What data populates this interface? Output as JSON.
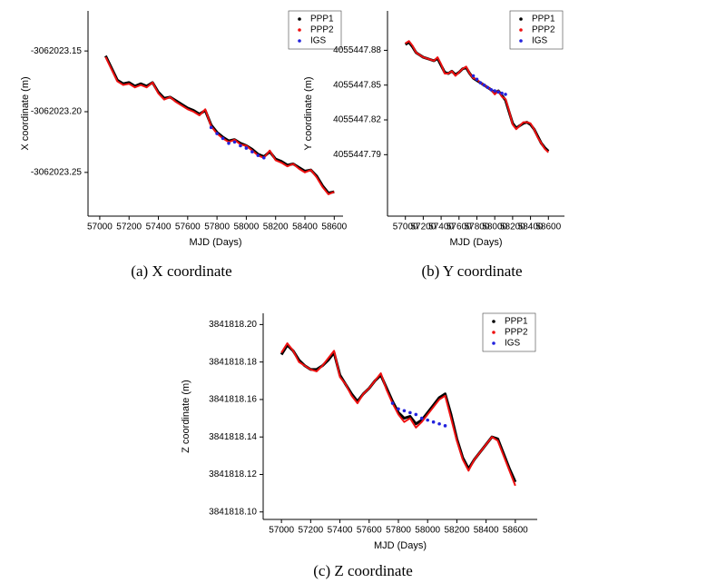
{
  "chart_data": [
    {
      "type": "line",
      "caption": "(a) X coordinate",
      "xlabel": "MJD (Days)",
      "ylabel": "X coordinate (m)",
      "legend": "upper right",
      "xlim": [
        56920,
        58660
      ],
      "ylim": [
        -3062023.286,
        -3062023.117
      ],
      "xticks": [
        57000,
        57200,
        57400,
        57600,
        57800,
        58000,
        58200,
        58400,
        58600
      ],
      "yticks": [
        -3062023.15,
        {
          "value": -3062023.2,
          "label": "-3062023.20"
        },
        -3062023.25
      ],
      "x": [
        57040,
        57080,
        57120,
        57160,
        57200,
        57240,
        57280,
        57320,
        57360,
        57400,
        57440,
        57480,
        57520,
        57560,
        57600,
        57640,
        57680,
        57720,
        57760,
        57800,
        57840,
        57880,
        57920,
        57960,
        58000,
        58040,
        58080,
        58120,
        58160,
        58200,
        58240,
        58280,
        58320,
        58360,
        58400,
        58440,
        58480,
        58520,
        58560,
        58600
      ],
      "series": [
        {
          "name": "PPP1",
          "color": "#000000",
          "style": "line",
          "values": [
            -3062023.154,
            -3062023.164,
            -3062023.174,
            -3062023.177,
            -3062023.176,
            -3062023.179,
            -3062023.177,
            -3062023.179,
            -3062023.176,
            -3062023.184,
            -3062023.189,
            -3062023.188,
            -3062023.191,
            -3062023.194,
            -3062023.197,
            -3062023.199,
            -3062023.202,
            -3062023.199,
            -3062023.211,
            -3062023.217,
            -3062023.221,
            -3062023.224,
            -3062023.223,
            -3062023.226,
            -3062023.228,
            -3062023.231,
            -3062023.235,
            -3062023.237,
            -3062023.233,
            -3062023.239,
            -3062023.241,
            -3062023.244,
            -3062023.243,
            -3062023.246,
            -3062023.249,
            -3062023.248,
            -3062023.253,
            -3062023.261,
            -3062023.267,
            -3062023.266
          ]
        },
        {
          "name": "PPP2",
          "color": "#ee1111",
          "style": "line",
          "values": [
            -3062023.155,
            -3062023.165,
            -3062023.175,
            -3062023.178,
            -3062023.177,
            -3062023.18,
            -3062023.178,
            -3062023.18,
            -3062023.176,
            -3062023.185,
            -3062023.19,
            -3062023.188,
            -3062023.192,
            -3062023.195,
            -3062023.198,
            -3062023.2,
            -3062023.203,
            -3062023.198,
            -3062023.212,
            -3062023.218,
            -3062023.222,
            -3062023.225,
            -3062023.223,
            -3062023.227,
            -3062023.228,
            -3062023.232,
            -3062023.236,
            -3062023.238,
            -3062023.232,
            -3062023.24,
            -3062023.242,
            -3062023.245,
            -3062023.243,
            -3062023.247,
            -3062023.25,
            -3062023.248,
            -3062023.254,
            -3062023.262,
            -3062023.268,
            -3062023.266
          ]
        },
        {
          "name": "IGS",
          "color": "#2222dd",
          "style": "dots",
          "x": [
            57760,
            57800,
            57840,
            57880,
            57920,
            57960,
            58000,
            58040,
            58080,
            58120
          ],
          "values": [
            -3062023.213,
            -3062023.218,
            -3062023.222,
            -3062023.226,
            -3062023.225,
            -3062023.228,
            -3062023.23,
            -3062023.233,
            -3062023.236,
            -3062023.238
          ]
        }
      ]
    },
    {
      "type": "line",
      "caption": "(b) Y coordinate",
      "xlabel": "MJD (Days)",
      "ylabel": "Y coordinate (m)",
      "legend": "upper right",
      "xlim": [
        56800,
        58780
      ],
      "ylim": [
        4055447.737,
        4055447.914
      ],
      "xticks": [
        57000,
        57200,
        57400,
        57600,
        57800,
        58000,
        58200,
        58400,
        58600
      ],
      "yticks": [
        4055447.88,
        4055447.85,
        4055447.82,
        4055447.79
      ],
      "x": [
        57000,
        57040,
        57080,
        57120,
        57160,
        57200,
        57240,
        57280,
        57320,
        57360,
        57400,
        57440,
        57480,
        57520,
        57560,
        57600,
        57640,
        57680,
        57720,
        57760,
        57800,
        57840,
        57880,
        57920,
        57960,
        58000,
        58040,
        58080,
        58120,
        58160,
        58200,
        58240,
        58280,
        58320,
        58360,
        58400,
        58440,
        58480,
        58520,
        58560,
        58600
      ],
      "series": [
        {
          "name": "PPP1",
          "color": "#000000",
          "style": "line",
          "values": [
            4055447.885,
            4055447.887,
            4055447.883,
            4055447.878,
            4055447.876,
            4055447.874,
            4055447.873,
            4055447.872,
            4055447.871,
            4055447.873,
            4055447.867,
            4055447.861,
            4055447.86,
            4055447.862,
            4055447.859,
            4055447.861,
            4055447.864,
            4055447.865,
            4055447.86,
            4055447.856,
            4055447.854,
            4055447.852,
            4055447.85,
            4055447.848,
            4055447.846,
            4055447.843,
            4055447.845,
            4055447.841,
            4055447.837,
            4055447.827,
            4055447.817,
            4055447.813,
            4055447.815,
            4055447.817,
            4055447.818,
            4055447.816,
            4055447.812,
            4055447.806,
            4055447.8,
            4055447.796,
            4055447.793
          ]
        },
        {
          "name": "PPP2",
          "color": "#ee1111",
          "style": "line",
          "values": [
            4055447.886,
            4055447.888,
            4055447.884,
            4055447.878,
            4055447.876,
            4055447.874,
            4055447.873,
            4055447.872,
            4055447.871,
            4055447.874,
            4055447.868,
            4055447.86,
            4055447.86,
            4055447.862,
            4055447.858,
            4055447.861,
            4055447.864,
            4055447.866,
            4055447.86,
            4055447.856,
            4055447.855,
            4055447.852,
            4055447.85,
            4055447.848,
            4055447.846,
            4055447.842,
            4055447.845,
            4055447.84,
            4055447.838,
            4055447.828,
            4055447.816,
            4055447.812,
            4055447.815,
            4055447.818,
            4055447.818,
            4055447.817,
            4055447.812,
            4055447.805,
            4055447.8,
            4055447.795,
            4055447.792
          ]
        },
        {
          "name": "IGS",
          "color": "#2222dd",
          "style": "dots",
          "x": [
            57760,
            57800,
            57840,
            57880,
            57920,
            57960,
            58000,
            58040,
            58080,
            58120
          ],
          "values": [
            4055447.858,
            4055447.855,
            4055447.852,
            4055447.85,
            4055447.848,
            4055447.846,
            4055447.845,
            4055447.844,
            4055447.843,
            4055447.842
          ]
        }
      ]
    },
    {
      "type": "line",
      "caption": "(c) Z coordinate",
      "xlabel": "MJD (Days)",
      "ylabel": "Z coordinate (m)",
      "legend": "upper right",
      "xlim": [
        56875,
        58750
      ],
      "ylim": [
        3841818.096,
        3841818.206
      ],
      "xticks": [
        57000,
        57200,
        57400,
        57600,
        57800,
        58000,
        58200,
        58400,
        58600
      ],
      "yticks": [
        {
          "value": 3841818.2,
          "label": "3841818.20"
        },
        3841818.18,
        3841818.16,
        3841818.14,
        3841818.12,
        {
          "value": 3841818.1,
          "label": "3841818.10"
        }
      ],
      "x": [
        57000,
        57040,
        57080,
        57120,
        57160,
        57200,
        57240,
        57280,
        57320,
        57360,
        57400,
        57440,
        57480,
        57520,
        57560,
        57600,
        57640,
        57680,
        57720,
        57760,
        57800,
        57840,
        57880,
        57920,
        57960,
        58000,
        58040,
        58080,
        58120,
        58160,
        58200,
        58240,
        58280,
        58320,
        58360,
        58400,
        58440,
        58480,
        58520,
        58560,
        58600
      ],
      "series": [
        {
          "name": "PPP1",
          "color": "#000000",
          "style": "line",
          "values": [
            3841818.184,
            3841818.189,
            3841818.186,
            3841818.181,
            3841818.178,
            3841818.176,
            3841818.176,
            3841818.178,
            3841818.181,
            3841818.185,
            3841818.173,
            3841818.168,
            3841818.163,
            3841818.159,
            3841818.163,
            3841818.166,
            3841818.17,
            3841818.173,
            3841818.166,
            3841818.159,
            3841818.153,
            3841818.15,
            3841818.151,
            3841818.147,
            3841818.149,
            3841818.153,
            3841818.157,
            3841818.161,
            3841818.163,
            3841818.152,
            3841818.139,
            3841818.129,
            3841818.123,
            3841818.128,
            3841818.132,
            3841818.136,
            3841818.14,
            3841818.139,
            3841818.131,
            3841818.123,
            3841818.116
          ]
        },
        {
          "name": "PPP2",
          "color": "#ee1111",
          "style": "line",
          "values": [
            3841818.185,
            3841818.19,
            3841818.186,
            3841818.18,
            3841818.178,
            3841818.176,
            3841818.175,
            3841818.178,
            3841818.182,
            3841818.186,
            3841818.172,
            3841818.168,
            3841818.162,
            3841818.158,
            3841818.163,
            3841818.166,
            3841818.17,
            3841818.174,
            3841818.165,
            3841818.158,
            3841818.152,
            3841818.148,
            3841818.15,
            3841818.145,
            3841818.148,
            3841818.152,
            3841818.156,
            3841818.16,
            3841818.162,
            3841818.15,
            3841818.138,
            3841818.128,
            3841818.122,
            3841818.128,
            3841818.132,
            3841818.136,
            3841818.14,
            3841818.138,
            3841818.13,
            3841818.122,
            3841818.114
          ]
        },
        {
          "name": "IGS",
          "color": "#2222dd",
          "style": "dots",
          "x": [
            57760,
            57800,
            57840,
            57880,
            57920,
            57960,
            58000,
            58040,
            58080,
            58120
          ],
          "values": [
            3841818.158,
            3841818.155,
            3841818.154,
            3841818.153,
            3841818.152,
            3841818.15,
            3841818.149,
            3841818.148,
            3841818.147,
            3841818.146
          ]
        }
      ]
    }
  ]
}
